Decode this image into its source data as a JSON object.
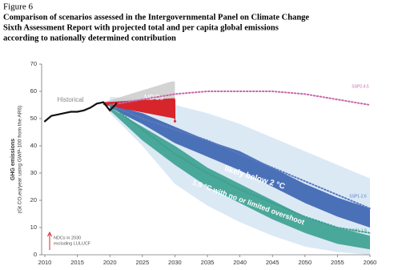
{
  "chart_data": {
    "type": "area",
    "caption": "Figure 6",
    "title": [
      "Comparison of scenarios assessed in the Intergovernmental Panel on Climate Change",
      "Sixth Assessment Report with projected total and per capita global emissions",
      "according to nationally determined contribution"
    ],
    "ylabel": [
      "GHG emissions",
      "(Gt CO₂eq/year using GWP-100 from the AR6)"
    ],
    "xlim": [
      2010,
      2060
    ],
    "xticks": [
      2010,
      2015,
      2020,
      2025,
      2030,
      2035,
      2040,
      2045,
      2050,
      2055,
      2060
    ],
    "ylim": [
      0,
      70
    ],
    "yticks": [
      0,
      10,
      20,
      30,
      40,
      50,
      60,
      70
    ],
    "annotation": [
      "NDCs in 2030",
      "excluding LULUCF"
    ],
    "series": [
      {
        "kind": "band",
        "color": "#dbe9f5",
        "x": [
          2020,
          2025,
          2030,
          2035,
          2040,
          2045,
          2050,
          2055,
          2060
        ],
        "low": [
          52,
          40,
          26,
          18,
          12,
          7,
          3,
          1,
          0
        ],
        "high": [
          58,
          57,
          55,
          52,
          48,
          43,
          38,
          33,
          28
        ]
      },
      {
        "name": "likely below 2 °C",
        "kind": "band",
        "color": "#4a70b8",
        "x": [
          2020,
          2025,
          2030,
          2035,
          2040,
          2045,
          2050,
          2055,
          2060
        ],
        "low": [
          54,
          48,
          41,
          36,
          31,
          25,
          19,
          14,
          10
        ],
        "high": [
          55,
          52,
          47,
          42,
          38,
          32,
          26,
          21,
          17
        ]
      },
      {
        "name": "1.5 °C with no or limited overshoot",
        "kind": "band",
        "color": "#4aa89a",
        "x": [
          2020,
          2025,
          2030,
          2035,
          2040,
          2045,
          2050,
          2055,
          2060
        ],
        "low": [
          53,
          42,
          33,
          25,
          19,
          13,
          8,
          4,
          2
        ],
        "high": [
          54,
          47,
          40,
          32,
          26,
          20,
          14,
          10,
          7
        ]
      },
      {
        "name": "INDCs",
        "kind": "band",
        "color": "#c8c8c8",
        "x": [
          2019,
          2030
        ],
        "low": [
          55,
          56
        ],
        "high": [
          56,
          64
        ]
      },
      {
        "name": "NDCs",
        "kind": "band",
        "color": "#d7262b",
        "x": [
          2019,
          2030
        ],
        "low": [
          55,
          50
        ],
        "high": [
          56,
          57.5
        ]
      },
      {
        "name": "SSP2-4.5",
        "kind": "line",
        "dash": true,
        "color": "#c866a8",
        "x": [
          2020,
          2025,
          2030,
          2035,
          2040,
          2045,
          2050,
          2055,
          2060
        ],
        "values": [
          55,
          57,
          59,
          60,
          60,
          60,
          59,
          57,
          55
        ]
      },
      {
        "name": "SSP1-2.6",
        "kind": "line",
        "dash": true,
        "color": "#5a78c0",
        "x": [
          2020,
          2025,
          2030,
          2035,
          2040,
          2045,
          2050,
          2055,
          2060
        ],
        "values": [
          55,
          50,
          46,
          42,
          37,
          32,
          27,
          22,
          17
        ]
      },
      {
        "name": "SSP1-1.9",
        "kind": "line",
        "dash": true,
        "color": "#3f9e8e",
        "x": [
          2020,
          2025,
          2030,
          2035,
          2040,
          2045,
          2050,
          2055,
          2060
        ],
        "values": [
          55,
          46,
          37,
          30,
          24,
          19,
          14,
          10,
          8
        ]
      },
      {
        "name": "Historical",
        "kind": "line",
        "color": "#111111",
        "x": [
          2010,
          2011,
          2012,
          2013,
          2014,
          2015,
          2016,
          2017,
          2018,
          2019,
          2020,
          2021
        ],
        "values": [
          49,
          51,
          51.5,
          52,
          52.5,
          52.5,
          53,
          54,
          55.5,
          56,
          53,
          55.5
        ]
      },
      {
        "kind": "errorbar",
        "color": "#d7262b",
        "x": 2030,
        "low": 49,
        "high": 57
      }
    ]
  }
}
